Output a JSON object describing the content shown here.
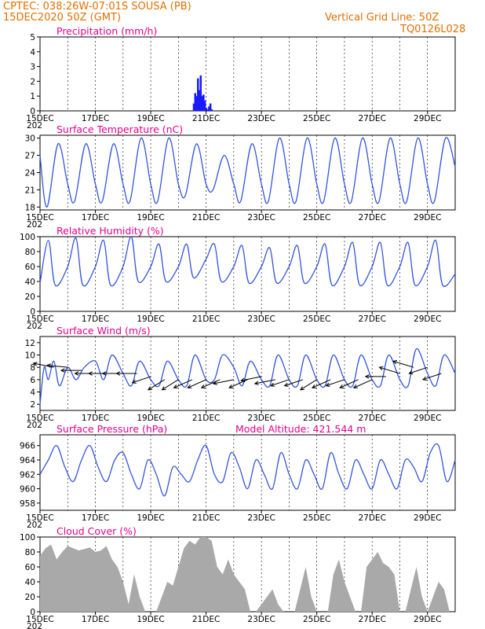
{
  "header": {
    "line1": "CPTEC:   038:26W-07:01S   SOUSA (PB)",
    "line2": "15DEC2020  50Z (GMT)",
    "right1": "Vertical Grid Line: 50Z",
    "right2": "TQ0126L028"
  },
  "x_axis": {
    "ticks": [
      "15DEC",
      "17DEC",
      "19DEC",
      "21DEC",
      "23DEC",
      "25DEC",
      "27DEC",
      "29DEC"
    ],
    "year_fragment": "202",
    "start_day": 15,
    "end_day": 30
  },
  "colors": {
    "line": "#3355dd",
    "bar": "#1a1aff",
    "cloud": "#a9a9a9",
    "title": "#e8008c",
    "header": "#e07000"
  },
  "chart_data": [
    {
      "type": "bar",
      "title": "Precipitation (mm/h)",
      "ylim": [
        0,
        5
      ],
      "yticks": [
        "0",
        "1",
        "2",
        "3",
        "4",
        "5"
      ],
      "series": [
        {
          "x": [
            20.55,
            20.6,
            20.65,
            20.7,
            20.75,
            20.8,
            20.85,
            20.9,
            20.95,
            21.0,
            21.05,
            21.1,
            21.15,
            21.2
          ],
          "values": [
            0.5,
            1.2,
            1.0,
            2.2,
            1.4,
            2.4,
            1.0,
            1.1,
            0.7,
            0.2,
            0.1,
            0.3,
            0.5,
            0.1
          ]
        }
      ]
    },
    {
      "type": "line",
      "title": "Surface Temperature (nC)",
      "ylim": [
        17.5,
        30.5
      ],
      "yticks": [
        "18",
        "21",
        "24",
        "27",
        "30"
      ],
      "series": [
        {
          "x": [
            15.0,
            15.25,
            15.65,
            16.0,
            16.25,
            16.65,
            17.0,
            17.25,
            17.65,
            18.0,
            18.25,
            18.65,
            19.0,
            19.25,
            19.65,
            20.0,
            20.25,
            20.65,
            21.0,
            21.25,
            21.65,
            22.0,
            22.25,
            22.65,
            23.0,
            23.25,
            23.65,
            24.0,
            24.25,
            24.65,
            25.0,
            25.25,
            25.65,
            26.0,
            26.25,
            26.65,
            27.0,
            27.25,
            27.65,
            28.0,
            28.25,
            28.65,
            29.0,
            29.25,
            29.65,
            30.0
          ],
          "values": [
            27,
            18,
            29,
            22,
            19,
            29,
            22,
            19,
            29,
            22,
            19,
            30,
            22,
            19,
            30,
            22,
            20,
            29,
            22,
            21,
            27,
            22,
            19,
            29,
            22,
            19,
            30,
            22,
            19,
            30,
            22,
            19,
            30,
            22,
            19,
            30,
            22,
            19,
            30,
            22,
            19,
            30,
            22,
            19,
            30,
            25
          ]
        }
      ]
    },
    {
      "type": "line",
      "title": "Relative Humidity (%)",
      "ylim": [
        0,
        100
      ],
      "yticks": [
        "0",
        "20",
        "40",
        "60",
        "80",
        "100"
      ],
      "series": [
        {
          "x": [
            15.0,
            15.3,
            15.55,
            16.0,
            16.3,
            16.55,
            17.0,
            17.3,
            17.55,
            18.0,
            18.3,
            18.55,
            19.0,
            19.3,
            19.55,
            20.0,
            20.3,
            20.55,
            21.0,
            21.3,
            21.55,
            22.0,
            22.3,
            22.55,
            23.0,
            23.3,
            23.55,
            24.0,
            24.3,
            24.55,
            25.0,
            25.3,
            25.55,
            26.0,
            26.3,
            26.55,
            27.0,
            27.3,
            27.55,
            28.0,
            28.3,
            28.55,
            29.0,
            29.3,
            29.55,
            30.0
          ],
          "values": [
            38,
            95,
            35,
            60,
            98,
            35,
            60,
            95,
            35,
            60,
            100,
            40,
            60,
            90,
            40,
            60,
            90,
            45,
            70,
            90,
            40,
            60,
            88,
            38,
            60,
            85,
            38,
            60,
            88,
            38,
            60,
            90,
            35,
            60,
            92,
            35,
            60,
            92,
            35,
            60,
            92,
            35,
            60,
            95,
            35,
            50
          ]
        }
      ]
    },
    {
      "type": "line",
      "title": "Surface Wind (m/s)",
      "ylim": [
        1,
        13
      ],
      "yticks": [
        "2",
        "4",
        "6",
        "8",
        "10",
        "12"
      ],
      "series": [
        {
          "x": [
            15.0,
            15.15,
            15.3,
            15.5,
            15.7,
            16.0,
            16.3,
            16.6,
            17.0,
            17.3,
            17.6,
            18.0,
            18.3,
            18.6,
            19.0,
            19.3,
            19.6,
            20.0,
            20.3,
            20.6,
            21.0,
            21.3,
            21.6,
            22.0,
            22.3,
            22.6,
            23.0,
            23.3,
            23.6,
            24.0,
            24.3,
            24.6,
            25.0,
            25.3,
            25.6,
            26.0,
            26.3,
            26.6,
            27.0,
            27.3,
            27.6,
            28.0,
            28.3,
            28.6,
            29.0,
            29.3,
            29.6,
            30.0
          ],
          "values": [
            2,
            8,
            6,
            9,
            5,
            8,
            6,
            8,
            9,
            6,
            10,
            7,
            5,
            9,
            6,
            5,
            9,
            6,
            5,
            10,
            6,
            6,
            10,
            8,
            5,
            9,
            6,
            5,
            10,
            6,
            5,
            10,
            6,
            5,
            10,
            6,
            5,
            10,
            6,
            5,
            10,
            6,
            5,
            11,
            7,
            5,
            10,
            7
          ]
        }
      ],
      "vectors": {
        "x": [
          15.5,
          16.0,
          16.5,
          17.0,
          17.5,
          18.0,
          18.5,
          19.0,
          19.5,
          20.0,
          20.5,
          21.0,
          21.5,
          22.0,
          22.5,
          23.0,
          23.5,
          24.0,
          24.5,
          25.0,
          25.5,
          26.0,
          26.5,
          27.0,
          27.5,
          28.0,
          28.5,
          29.0,
          29.5
        ],
        "speed": [
          8,
          8,
          7.5,
          7,
          7,
          7,
          7,
          6.5,
          6,
          6,
          6,
          6,
          6,
          6,
          6,
          6.5,
          6,
          6,
          6,
          6,
          6,
          6,
          6,
          6,
          6.5,
          7,
          8,
          8,
          7
        ],
        "dx": [
          -1,
          -1,
          -1,
          -1,
          -1,
          -1,
          -1,
          -0.9,
          -0.8,
          -0.8,
          -0.9,
          -0.9,
          -0.9,
          -1,
          -0.9,
          -1,
          -1,
          -0.9,
          -0.9,
          -0.8,
          -0.9,
          -0.9,
          -0.9,
          -0.9,
          -1,
          -1,
          -1,
          -0.9,
          -0.9
        ],
        "dy": [
          0.2,
          0.1,
          0,
          0,
          0,
          0,
          0,
          -0.3,
          -0.5,
          -0.5,
          -0.4,
          -0.4,
          -0.4,
          -0.2,
          -0.4,
          -0.2,
          -0.2,
          -0.3,
          -0.3,
          -0.5,
          -0.4,
          -0.3,
          -0.4,
          -0.4,
          0,
          0.3,
          0.3,
          -0.3,
          -0.3
        ]
      }
    },
    {
      "type": "line",
      "title": "Surface Pressure (hPa)",
      "subtitle": "Model Altitude: 421.544 m",
      "ylim": [
        957,
        967.5
      ],
      "yticks": [
        "958",
        "960",
        "962",
        "964",
        "966"
      ],
      "series": [
        {
          "x": [
            15.0,
            15.3,
            15.6,
            15.9,
            16.2,
            16.5,
            16.8,
            17.1,
            17.4,
            17.7,
            18.0,
            18.3,
            18.6,
            18.9,
            19.2,
            19.5,
            19.8,
            20.1,
            20.4,
            20.7,
            21.0,
            21.3,
            21.6,
            21.9,
            22.2,
            22.5,
            22.8,
            23.1,
            23.4,
            23.7,
            24.0,
            24.3,
            24.6,
            24.9,
            25.2,
            25.5,
            25.8,
            26.1,
            26.4,
            26.7,
            27.0,
            27.3,
            27.6,
            27.9,
            28.2,
            28.5,
            28.8,
            29.1,
            29.4,
            29.7,
            30.0
          ],
          "values": [
            962,
            964,
            966,
            963,
            961,
            964,
            966,
            963,
            961,
            964,
            965,
            962,
            960,
            964,
            962,
            959,
            963,
            962,
            961,
            964,
            966,
            962,
            961,
            965,
            963,
            960,
            964,
            962,
            960,
            965,
            962,
            960,
            964,
            962,
            960,
            965,
            962,
            960,
            964,
            962,
            960,
            964,
            962,
            960,
            964,
            963,
            961,
            965,
            966,
            961,
            964
          ]
        }
      ]
    },
    {
      "type": "area",
      "title": "Cloud Cover (%)",
      "ylim": [
        0,
        100
      ],
      "yticks": [
        "0",
        "20",
        "40",
        "60",
        "80",
        "100"
      ],
      "series": [
        {
          "x": [
            15.0,
            15.2,
            15.4,
            15.6,
            15.8,
            16.0,
            16.2,
            16.4,
            16.6,
            16.8,
            17.0,
            17.2,
            17.4,
            17.6,
            17.8,
            18.0,
            18.2,
            18.4,
            18.6,
            18.8,
            19.0,
            19.2,
            19.4,
            19.6,
            19.8,
            20.0,
            20.2,
            20.4,
            20.6,
            20.8,
            21.0,
            21.2,
            21.4,
            21.6,
            21.8,
            22.0,
            22.2,
            22.4,
            22.6,
            22.8,
            23.0,
            23.2,
            23.4,
            23.6,
            23.8,
            24.0,
            24.2,
            24.4,
            24.6,
            24.8,
            25.0,
            25.2,
            25.4,
            25.6,
            25.8,
            26.0,
            26.2,
            26.4,
            26.6,
            26.8,
            27.0,
            27.2,
            27.4,
            27.6,
            27.8,
            28.0,
            28.2,
            28.4,
            28.6,
            28.8,
            29.0,
            29.2,
            29.4,
            29.6,
            29.8,
            30.0
          ],
          "values": [
            75,
            85,
            90,
            70,
            80,
            88,
            85,
            82,
            84,
            86,
            80,
            82,
            88,
            70,
            60,
            40,
            10,
            50,
            20,
            0,
            0,
            0,
            20,
            40,
            35,
            60,
            85,
            95,
            90,
            100,
            100,
            95,
            60,
            50,
            70,
            50,
            40,
            30,
            0,
            0,
            10,
            20,
            30,
            10,
            0,
            0,
            0,
            30,
            60,
            20,
            0,
            0,
            0,
            50,
            70,
            40,
            20,
            0,
            0,
            60,
            70,
            80,
            65,
            60,
            50,
            0,
            0,
            30,
            60,
            20,
            0,
            20,
            40,
            30,
            0,
            0
          ]
        }
      ]
    }
  ]
}
